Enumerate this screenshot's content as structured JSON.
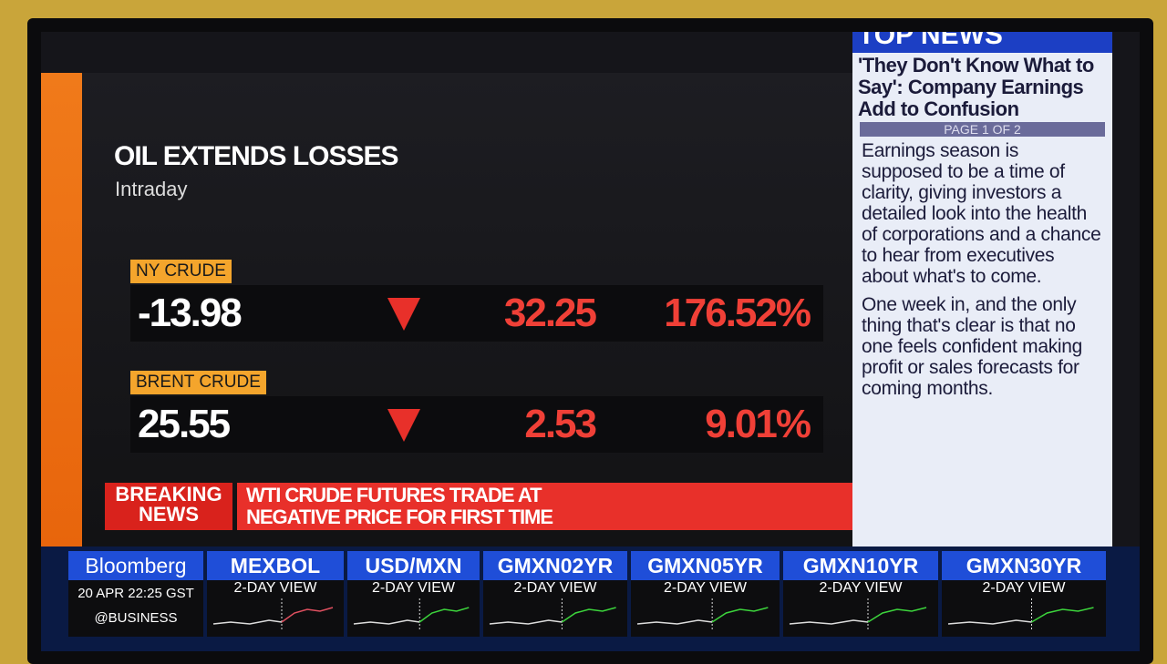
{
  "panel": {
    "title": "OIL EXTENDS LOSSES",
    "subtitle": "Intraday"
  },
  "quotes": [
    {
      "name": "NY CRUDE",
      "price": "-13.98",
      "change": "32.25",
      "percent": "176.52%"
    },
    {
      "name": "BRENT CRUDE",
      "price": "25.55",
      "change": "2.53",
      "percent": "9.01%"
    }
  ],
  "breaking": {
    "label": [
      "BREAKING",
      "NEWS"
    ],
    "headline": [
      "WTI CRUDE FUTURES TRADE AT",
      "NEGATIVE PRICE FOR FIRST TIME"
    ]
  },
  "top_news": {
    "title": "TOP NEWS",
    "headline": "'They Don't Know What to Say': Company Earnings Add to Confusion",
    "page": "PAGE 1 OF 2",
    "paragraphs": [
      "Earnings season is supposed to be a time of clarity, giving investors a detailed look into the health of corporations and a chance to hear from executives about what's to come.",
      "One week in, and the only thing that's clear is that no one feels confident making profit or sales forecasts for coming months."
    ]
  },
  "ticker": {
    "brand": "Bloomberg",
    "date": "20 APR",
    "time": "22:25 GST",
    "handle": "@BUSINESS",
    "items": [
      {
        "symbol": "MEXBOL",
        "view": "2-DAY VIEW"
      },
      {
        "symbol": "USD/MXN",
        "view": "2-DAY VIEW"
      },
      {
        "symbol": "GMXN02YR",
        "view": "2-DAY VIEW"
      },
      {
        "symbol": "GMXN05YR",
        "view": "2-DAY VIEW"
      },
      {
        "symbol": "GMXN10YR",
        "view": "2-DAY VIEW"
      },
      {
        "symbol": "GMXN30YR",
        "view": "2-DAY VIEW"
      }
    ]
  }
}
